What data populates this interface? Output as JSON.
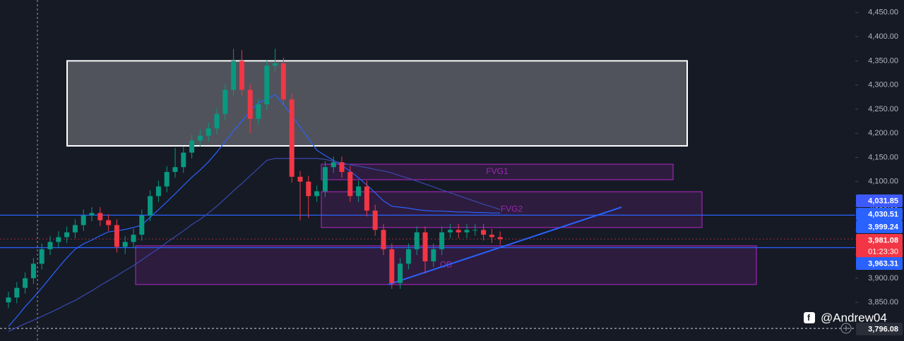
{
  "chart_data": {
    "type": "candlestick",
    "up_color": "#089981",
    "down_color": "#f23645",
    "open": [
      3850,
      3860,
      3880,
      3900,
      3930,
      3960,
      3975,
      3985,
      3995,
      4010,
      4030,
      4035,
      4020,
      4010,
      3965,
      3975,
      3990,
      4030,
      4070,
      4090,
      4120,
      4130,
      4160,
      4185,
      4195,
      4210,
      4240,
      4290,
      4350,
      4290,
      4230,
      4260,
      4340,
      4345,
      4270,
      4110,
      4100,
      4070,
      4080,
      4130,
      4140,
      4120,
      4070,
      4090,
      4040,
      4000,
      3960,
      3890,
      3930,
      3960,
      3995,
      3935,
      3960,
      3995,
      4000,
      3995,
      4000,
      4000,
      3990,
      3985
    ],
    "high": [
      3872,
      3892,
      3912,
      3942,
      3972,
      3987,
      3997,
      4007,
      4022,
      4042,
      4047,
      4047,
      4032,
      4022,
      3987,
      4002,
      4042,
      4082,
      4102,
      4132,
      4170,
      4172,
      4197,
      4207,
      4222,
      4252,
      4302,
      4375,
      4372,
      4302,
      4272,
      4352,
      4375,
      4357,
      4282,
      4122,
      4112,
      4092,
      4142,
      4152,
      4152,
      4132,
      4102,
      4102,
      4052,
      4012,
      3972,
      3942,
      3972,
      4007,
      4007,
      3972,
      4007,
      4012,
      4012,
      4012,
      4012,
      4012,
      4002,
      3997
    ],
    "low": [
      3838,
      3848,
      3868,
      3888,
      3918,
      3948,
      3963,
      3973,
      3983,
      3998,
      4018,
      4008,
      3998,
      3953,
      3950,
      3963,
      3978,
      4018,
      4058,
      4078,
      4108,
      4118,
      4148,
      4173,
      4183,
      4198,
      4228,
      4278,
      4278,
      4200,
      4218,
      4248,
      4328,
      4258,
      4098,
      4020,
      4025,
      4058,
      4068,
      4118,
      4108,
      4058,
      4058,
      4028,
      3988,
      3948,
      3878,
      3878,
      3918,
      3948,
      3910,
      3923,
      3948,
      3983,
      3983,
      3983,
      3988,
      3978,
      3973,
      3969
    ],
    "close": [
      3860,
      3880,
      3900,
      3930,
      3960,
      3975,
      3985,
      3995,
      4010,
      4030,
      4035,
      4020,
      4010,
      3965,
      3975,
      3990,
      4030,
      4070,
      4090,
      4120,
      4130,
      4160,
      4185,
      4195,
      4210,
      4240,
      4290,
      4350,
      4290,
      4230,
      4260,
      4340,
      4345,
      4270,
      4110,
      4100,
      4070,
      4080,
      4130,
      4140,
      4120,
      4070,
      4090,
      4040,
      4000,
      3960,
      3890,
      3930,
      3960,
      3995,
      3935,
      3960,
      3995,
      4000,
      3995,
      4000,
      4000,
      3990,
      3985,
      3981
    ],
    "moving_averages": [
      {
        "color": "#2962ff",
        "values": [
          3800,
          3820,
          3841,
          3860,
          3880,
          3901,
          3922,
          3942,
          3960,
          3971,
          3979,
          3988,
          3996,
          3998,
          4001,
          4005,
          4010,
          4026,
          4042,
          4058,
          4075,
          4092,
          4109,
          4124,
          4141,
          4161,
          4183,
          4205,
          4225,
          4246,
          4263,
          4271,
          4280,
          4260,
          4237,
          4213,
          4189,
          4165,
          4154,
          4144,
          4133,
          4122,
          4108,
          4093,
          4077,
          4060,
          4049,
          4047,
          4045,
          4042,
          4040,
          4039,
          4039,
          4038,
          4037,
          4037,
          4036,
          4036,
          4035,
          4035
        ]
      },
      {
        "color": "#3949ab",
        "values": [
          3790,
          3798,
          3806,
          3813,
          3821,
          3829,
          3837,
          3846,
          3854,
          3864,
          3874,
          3885,
          3895,
          3905,
          3916,
          3926,
          3938,
          3950,
          3961,
          3974,
          3986,
          3998,
          4011,
          4022,
          4035,
          4049,
          4065,
          4081,
          4096,
          4112,
          4128,
          4144,
          4148,
          4148,
          4148,
          4148,
          4148,
          4148,
          4146,
          4142,
          4139,
          4135,
          4132,
          4129,
          4125,
          4122,
          4118,
          4112,
          4107,
          4101,
          4095,
          4089,
          4083,
          4077,
          4071,
          4065,
          4059,
          4053,
          4048,
          4042
        ]
      }
    ],
    "zones": [
      {
        "top": 4350,
        "bottom": 4174,
        "color": "#ffffff"
      },
      {
        "label": "FVG1",
        "top": 4136,
        "bottom": 4104,
        "color": "#9c27b0"
      },
      {
        "label": "FVG2",
        "top": 4079,
        "bottom": 4005,
        "color": "#9c27b0"
      },
      {
        "label": "OB",
        "top": 3967,
        "bottom": 3887,
        "color": "#9c27b0"
      }
    ],
    "trendline": {
      "start": 3887,
      "end": 4047,
      "color": "#2962ff"
    },
    "ylim": [
      3770,
      4476
    ],
    "yticks": [
      {
        "value": 4450,
        "label": "4,450.00"
      },
      {
        "value": 4400,
        "label": "4,400.00"
      },
      {
        "value": 4350,
        "label": "4,350.00"
      },
      {
        "value": 4300,
        "label": "4,300.00"
      },
      {
        "value": 4250,
        "label": "4,250.00"
      },
      {
        "value": 4200,
        "label": "4,200.00"
      },
      {
        "value": 4150,
        "label": "4,150.00"
      },
      {
        "value": 4100,
        "label": "4,100.00"
      },
      {
        "value": 4050,
        "label": "4,050.00"
      },
      {
        "value": 4000,
        "label": "4,000.00"
      },
      {
        "value": 3950,
        "label": "3,950.00"
      },
      {
        "value": 3900,
        "label": "3,900.00"
      },
      {
        "value": 3850,
        "label": "3,850.00"
      }
    ],
    "price_tags": [
      {
        "value": 4031.85,
        "label": "4,031.85",
        "color": "#3d5afe"
      },
      {
        "value": 4030.51,
        "label": "4,030.51",
        "color": "#2962ff"
      },
      {
        "value": 3999.24,
        "label": "3,999.24",
        "color": "#2962ff"
      },
      {
        "value": 3981.08,
        "label": "3,981.08",
        "color": "#f23645"
      },
      {
        "value": 3963.31,
        "label": "3,963.31",
        "color": "#2962ff"
      },
      {
        "value": 3796.08,
        "label": "3,796.08",
        "color": "#2a2e39"
      }
    ],
    "countdown": "01:23:30",
    "watermark": "@Andrew04"
  }
}
